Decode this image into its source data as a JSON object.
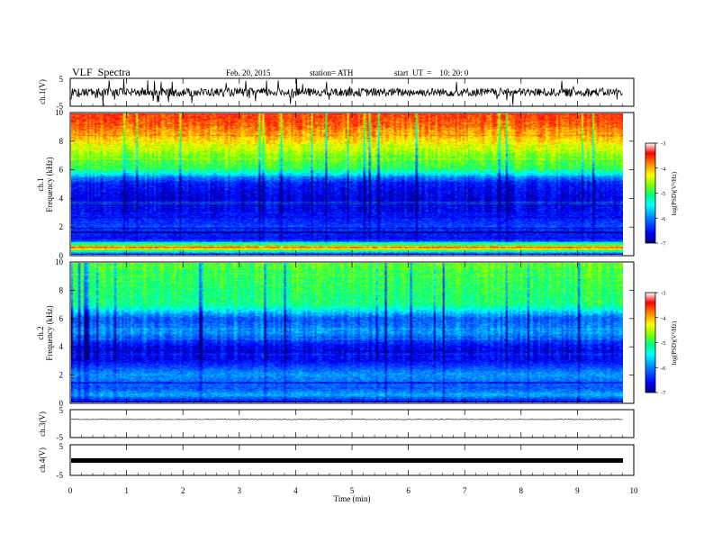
{
  "header": {
    "title": "VLF  Spectra",
    "date": "Feb. 20, 2015",
    "station": "station= ATH",
    "start": "start  UT  =    10: 20: 0"
  },
  "labels": {
    "ch1": "ch.1(V)",
    "ch3": "ch.3(V)",
    "ch4": "ch.4(V)",
    "spec1": "ch.1",
    "spec2": "ch.2",
    "freq": "Frequency  (kHz)",
    "xlabel": "Time  (min)",
    "colorbar": "log(PSD)(V²/Hz)"
  },
  "colors": {
    "scale": [
      "#000080",
      "#0000ff",
      "#0080ff",
      "#00ffff",
      "#00ff80",
      "#80ff00",
      "#ffff00",
      "#ff8000",
      "#ff0000",
      "#ffffff"
    ]
  },
  "chart_data": [
    {
      "type": "line",
      "name": "ch1-waveform",
      "ylabel": "ch.1(V)",
      "ylim": [
        -5,
        5
      ],
      "yticks": [
        "5",
        "-5"
      ],
      "xlim": [
        0,
        10
      ],
      "baseline_v": 0,
      "amplitude_v": 1.5,
      "data_end_min": 9.8
    },
    {
      "type": "heatmap",
      "name": "ch1-spectrogram",
      "ylabel": "Frequency  (kHz)",
      "ylim": [
        0,
        10
      ],
      "yticks": [
        "0",
        "2",
        "4",
        "6",
        "8",
        "10"
      ],
      "xlim": [
        0,
        10
      ],
      "data_end_min": 9.8,
      "colorbar": {
        "label": "log(PSD)(V²/Hz)",
        "range": [
          -7,
          -3
        ],
        "ticks": [
          "-3",
          "-4",
          "-5",
          "-6",
          "-7"
        ]
      },
      "profile_freq_khz": [
        0,
        0.5,
        1,
        2,
        3,
        4,
        5,
        5.5,
        6,
        7,
        8,
        9,
        10
      ],
      "profile_log_psd": [
        -6.5,
        -3.6,
        -6.6,
        -6.3,
        -6.6,
        -6.7,
        -6.5,
        -6.0,
        -5.0,
        -4.7,
        -4.2,
        -3.8,
        -3.5
      ]
    },
    {
      "type": "heatmap",
      "name": "ch2-spectrogram",
      "ylabel": "Frequency  (kHz)",
      "ylim": [
        0,
        10
      ],
      "yticks": [
        "0",
        "2",
        "4",
        "6",
        "8",
        "10"
      ],
      "xlim": [
        0,
        10
      ],
      "data_end_min": 9.8,
      "colorbar": {
        "label": "log(PSD)(V²/Hz)",
        "range": [
          -7,
          -3
        ],
        "ticks": [
          "-3",
          "-4",
          "-5",
          "-6",
          "-7"
        ]
      },
      "profile_freq_khz": [
        0,
        0.5,
        1,
        2,
        3,
        4,
        5,
        6,
        7,
        8,
        9,
        10
      ],
      "profile_log_psd": [
        -6.6,
        -5.8,
        -6.2,
        -5.9,
        -6.6,
        -6.6,
        -5.9,
        -6.2,
        -5.1,
        -5.0,
        -4.9,
        -4.8
      ]
    },
    {
      "type": "line",
      "name": "ch3-waveform",
      "ylabel": "ch.3(V)",
      "ylim": [
        -5,
        5
      ],
      "yticks": [
        "5",
        "-5"
      ],
      "xlim": [
        0,
        10
      ],
      "baseline_v": 1.5,
      "amplitude_v": 0.1,
      "data_end_min": 9.8
    },
    {
      "type": "line",
      "name": "ch4-waveform",
      "ylabel": "ch.4(V)",
      "ylim": [
        -5,
        5
      ],
      "yticks": [
        "5",
        "-5"
      ],
      "xlim": [
        0,
        10
      ],
      "baseline_v": 0,
      "amplitude_v": 0.25,
      "data_end_min": 9.8
    }
  ],
  "xaxis": {
    "label": "Time  (min)",
    "ticks": [
      "0",
      "1",
      "2",
      "3",
      "4",
      "5",
      "6",
      "7",
      "8",
      "9",
      "10"
    ]
  }
}
